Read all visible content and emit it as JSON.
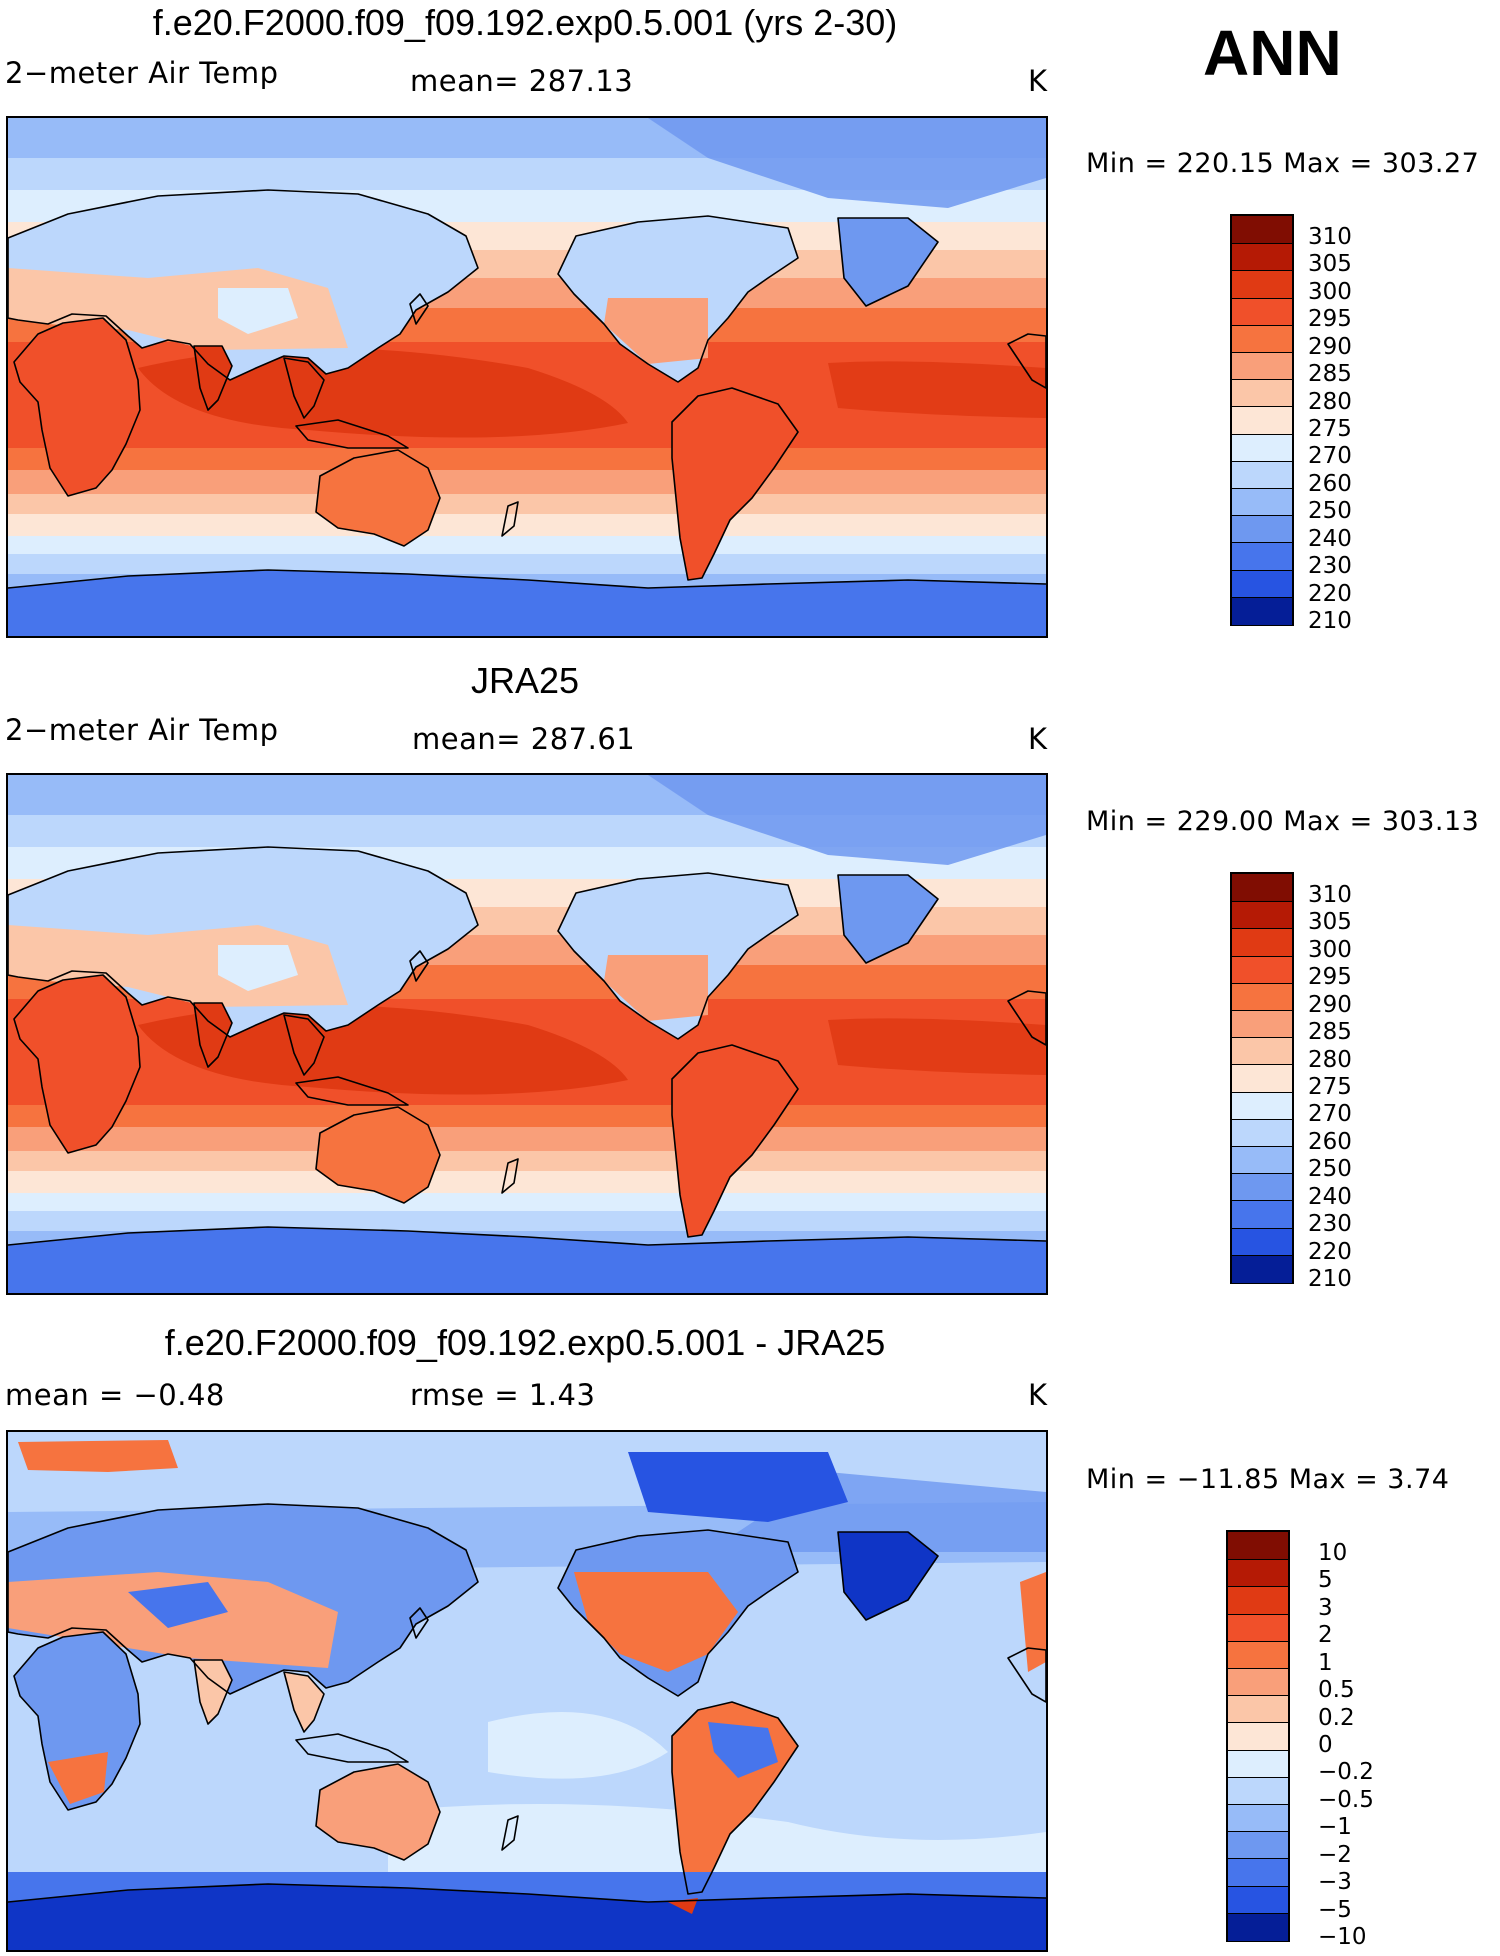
{
  "header": {
    "season": "ANN"
  },
  "colors": {
    "warm": [
      "#fde6d6",
      "#fbc6a8",
      "#f99f7a",
      "#f6733f",
      "#f0502a",
      "#e03a14",
      "#b51a05",
      "#800d02"
    ],
    "cool": [
      "#ddeefe",
      "#bcd7fc",
      "#97bbf8",
      "#6e98f0",
      "#4775ec",
      "#2754e2",
      "#0f35c6",
      "#051e97",
      "#000e72"
    ],
    "coast": "#000000"
  },
  "panels": [
    {
      "id": "model",
      "title": "f.e20.F2000.f09_f09.192.exp0.5.001 (yrs 2-30)",
      "left": "2−meter Air Temp",
      "center": "mean=  287.13",
      "units": "K",
      "minmax": "Min  =  220.15  Max  =  303.27",
      "legend": [
        "310",
        "305",
        "300",
        "295",
        "290",
        "285",
        "280",
        "275",
        "270",
        "260",
        "250",
        "240",
        "230",
        "220",
        "210"
      ]
    },
    {
      "id": "obs",
      "title": "JRA25",
      "left": "2−meter Air Temp",
      "center": "mean=  287.61",
      "units": "K",
      "minmax": "Min  =  229.00  Max  =  303.13",
      "legend": [
        "310",
        "305",
        "300",
        "295",
        "290",
        "285",
        "280",
        "275",
        "270",
        "260",
        "250",
        "240",
        "230",
        "220",
        "210"
      ]
    },
    {
      "id": "diff",
      "title": "f.e20.F2000.f09_f09.192.exp0.5.001 - JRA25",
      "left": "mean  =    −0.48",
      "center": "rmse  =       1.43",
      "units": "K",
      "minmax": "Min  =  −11.85  Max  =       3.74",
      "legend": [
        "10",
        "5",
        "3",
        "2",
        "1",
        "0.5",
        "0.2",
        "0",
        "−0.2",
        "−0.5",
        "−1",
        "−2",
        "−3",
        "−5",
        "−10"
      ]
    }
  ]
}
